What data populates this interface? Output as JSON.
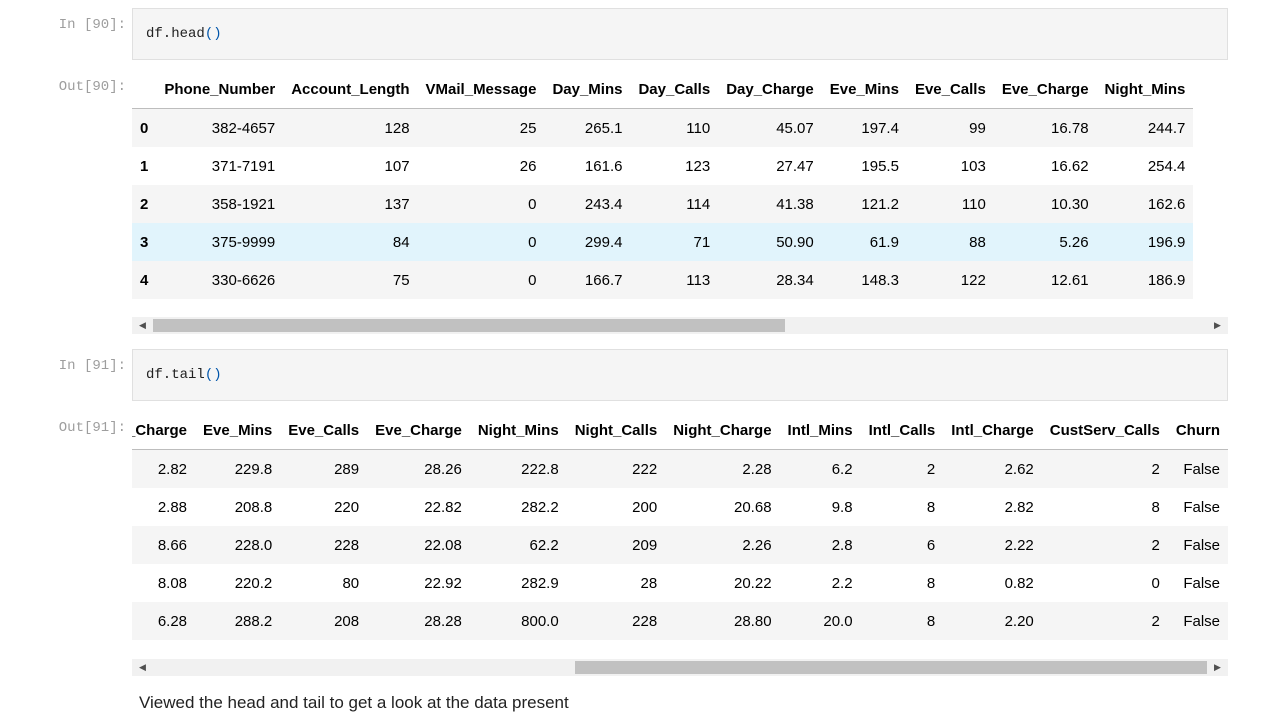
{
  "cell1": {
    "in_prompt": "In [90]:",
    "code_obj": "df.head",
    "code_paren": "()",
    "out_prompt": "Out[90]:",
    "columns": [
      "",
      "Phone_Number",
      "Account_Length",
      "VMail_Message",
      "Day_Mins",
      "Day_Calls",
      "Day_Charge",
      "Eve_Mins",
      "Eve_Calls",
      "Eve_Charge",
      "Night_Mins"
    ],
    "rows": [
      [
        "0",
        "382-4657",
        "128",
        "25",
        "265.1",
        "110",
        "45.07",
        "197.4",
        "99",
        "16.78",
        "244.7"
      ],
      [
        "1",
        "371-7191",
        "107",
        "26",
        "161.6",
        "123",
        "27.47",
        "195.5",
        "103",
        "16.62",
        "254.4"
      ],
      [
        "2",
        "358-1921",
        "137",
        "0",
        "243.4",
        "114",
        "41.38",
        "121.2",
        "110",
        "10.30",
        "162.6"
      ],
      [
        "3",
        "375-9999",
        "84",
        "0",
        "299.4",
        "71",
        "50.90",
        "61.9",
        "88",
        "5.26",
        "196.9"
      ],
      [
        "4",
        "330-6626",
        "75",
        "0",
        "166.7",
        "113",
        "28.34",
        "148.3",
        "122",
        "12.61",
        "186.9"
      ]
    ],
    "highlighted_row": 3,
    "scroll_position": 0.0,
    "scroll_visible_fraction": 0.6
  },
  "cell2": {
    "in_prompt": "In [91]:",
    "code_obj": "df.tail",
    "code_paren": "()",
    "out_prompt": "Out[91]:",
    "columns": [
      "Day_Charge",
      "Eve_Mins",
      "Eve_Calls",
      "Eve_Charge",
      "Night_Mins",
      "Night_Calls",
      "Night_Charge",
      "Intl_Mins",
      "Intl_Calls",
      "Intl_Charge",
      "CustServ_Calls",
      "Churn"
    ],
    "rows": [
      [
        "2.82",
        "229.8",
        "289",
        "28.26",
        "222.8",
        "222",
        "2.28",
        "6.2",
        "2",
        "2.62",
        "2",
        "False"
      ],
      [
        "2.88",
        "208.8",
        "220",
        "22.82",
        "282.2",
        "200",
        "20.68",
        "9.8",
        "8",
        "2.82",
        "8",
        "False"
      ],
      [
        "8.66",
        "228.0",
        "228",
        "22.08",
        "62.2",
        "209",
        "2.26",
        "2.8",
        "6",
        "2.22",
        "2",
        "False"
      ],
      [
        "8.08",
        "220.2",
        "80",
        "22.92",
        "282.9",
        "28",
        "20.22",
        "2.2",
        "8",
        "0.82",
        "0",
        "False"
      ],
      [
        "6.28",
        "288.2",
        "208",
        "28.28",
        "800.0",
        "228",
        "28.80",
        "20.0",
        "8",
        "2.20",
        "2",
        "False"
      ]
    ],
    "scroll_position": 1.0,
    "scroll_visible_fraction": 0.6
  },
  "markdown": {
    "text": "Viewed the head and tail to get a look at the data present"
  }
}
